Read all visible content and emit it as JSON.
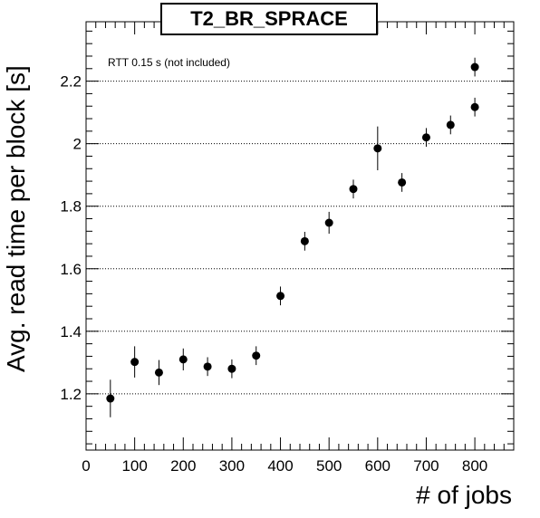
{
  "chart_data": {
    "type": "scatter",
    "title": "T2_BR_SPRACE",
    "xlabel": "# of jobs",
    "ylabel": "Avg. read time per block [s]",
    "annotation": "RTT 0.15 s (not included)",
    "xlim": [
      0,
      880
    ],
    "ylim": [
      1.02,
      2.39
    ],
    "x_ticks": [
      0,
      100,
      200,
      300,
      400,
      500,
      600,
      700,
      800
    ],
    "y_ticks": [
      1.2,
      1.4,
      1.6,
      1.8,
      2.0,
      2.2
    ],
    "x_tick_labels": [
      "0",
      "100",
      "200",
      "300",
      "400",
      "500",
      "600",
      "700",
      "800"
    ],
    "y_tick_labels": [
      "1.2",
      "1.4",
      "1.6",
      "1.8",
      "2",
      "2.2"
    ],
    "grid": "horizontal-dotted",
    "marker_color": "#000000",
    "points": [
      {
        "x": 50,
        "y": 1.185,
        "err": 0.06
      },
      {
        "x": 100,
        "y": 1.302,
        "err": 0.05
      },
      {
        "x": 150,
        "y": 1.268,
        "err": 0.04
      },
      {
        "x": 200,
        "y": 1.31,
        "err": 0.035
      },
      {
        "x": 250,
        "y": 1.287,
        "err": 0.03
      },
      {
        "x": 300,
        "y": 1.28,
        "err": 0.03
      },
      {
        "x": 350,
        "y": 1.322,
        "err": 0.03
      },
      {
        "x": 400,
        "y": 1.513,
        "err": 0.03
      },
      {
        "x": 450,
        "y": 1.688,
        "err": 0.03
      },
      {
        "x": 500,
        "y": 1.747,
        "err": 0.035
      },
      {
        "x": 550,
        "y": 1.855,
        "err": 0.03
      },
      {
        "x": 600,
        "y": 1.985,
        "err": 0.07
      },
      {
        "x": 650,
        "y": 1.876,
        "err": 0.03
      },
      {
        "x": 700,
        "y": 2.02,
        "err": 0.03
      },
      {
        "x": 750,
        "y": 2.06,
        "err": 0.03
      },
      {
        "x": 800,
        "y": 2.117,
        "err": 0.03
      },
      {
        "x": 800,
        "y": 2.245,
        "err": 0.03
      }
    ]
  }
}
